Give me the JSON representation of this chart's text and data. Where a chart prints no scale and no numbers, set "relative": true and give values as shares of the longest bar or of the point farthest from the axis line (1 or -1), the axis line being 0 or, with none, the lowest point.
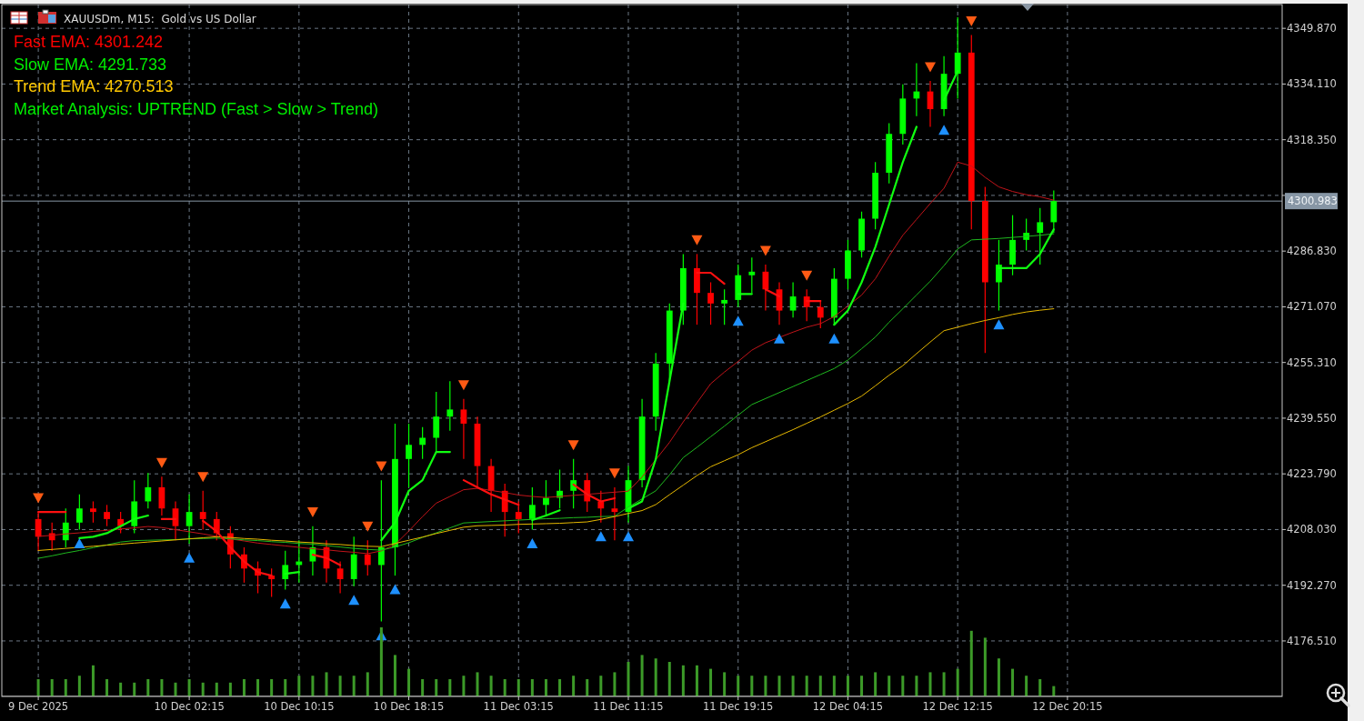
{
  "chart_data": [
    {
      "type": "candlestick",
      "title": "XAUUSDm, M15:  Gold vs US Dollar",
      "annotations": [
        "Fast EMA: 4301.242",
        "Slow EMA: 4291.733",
        "Trend EMA: 4270.513",
        "Market Analysis: UPTREND (Fast > Slow > Trend)"
      ],
      "categories": [
        "9 Dec 2025",
        null,
        null,
        null,
        null,
        null,
        null,
        null,
        null,
        null,
        null,
        "10 Dec 02:15",
        null,
        null,
        null,
        null,
        null,
        null,
        null,
        "10 Dec 10:15",
        null,
        null,
        null,
        null,
        null,
        null,
        null,
        "10 Dec 18:15",
        null,
        null,
        null,
        null,
        null,
        null,
        null,
        "11 Dec 03:15",
        null,
        null,
        null,
        null,
        null,
        null,
        null,
        "11 Dec 11:15",
        null,
        null,
        null,
        null,
        null,
        null,
        null,
        "11 Dec 19:15",
        null,
        null,
        null,
        null,
        null,
        null,
        null,
        "12 Dec 04:15",
        null,
        null,
        null,
        null,
        null,
        null,
        null,
        "12 Dec 12:15",
        null,
        null,
        null,
        null,
        null,
        null,
        null,
        "12 Dec 20:15"
      ],
      "ohlc": [
        [
          4211,
          4213,
          4202,
          4206
        ],
        [
          4207,
          4210,
          4202,
          4205
        ],
        [
          4205,
          4214,
          4203,
          4210
        ],
        [
          4210,
          4218,
          4208,
          4214
        ],
        [
          4214,
          4216,
          4210,
          4213
        ],
        [
          4213,
          4215,
          4209,
          4211
        ],
        [
          4211,
          4213,
          4207,
          4209
        ],
        [
          4209,
          4222,
          4207,
          4216
        ],
        [
          4216,
          4224,
          4214,
          4220
        ],
        [
          4220,
          4223,
          4212,
          4214
        ],
        [
          4214,
          4216,
          4205,
          4209
        ],
        [
          4209,
          4218,
          4204,
          4213
        ],
        [
          4213,
          4219,
          4208,
          4211
        ],
        [
          4211,
          4213,
          4205,
          4207
        ],
        [
          4207,
          4209,
          4197,
          4201
        ],
        [
          4201,
          4203,
          4193,
          4197
        ],
        [
          4197,
          4199,
          4190,
          4195
        ],
        [
          4195,
          4197,
          4189,
          4194
        ],
        [
          4194,
          4202,
          4191,
          4198
        ],
        [
          4198,
          4205,
          4193,
          4199
        ],
        [
          4199,
          4209,
          4195,
          4203
        ],
        [
          4203,
          4205,
          4193,
          4197
        ],
        [
          4197,
          4199,
          4190,
          4194
        ],
        [
          4194,
          4206,
          4192,
          4201
        ],
        [
          4201,
          4205,
          4195,
          4198
        ],
        [
          4198,
          4222,
          4182,
          4203
        ],
        [
          4203,
          4238,
          4195,
          4228
        ],
        [
          4228,
          4238,
          4220,
          4232
        ],
        [
          4232,
          4237,
          4228,
          4234
        ],
        [
          4234,
          4247,
          4230,
          4240
        ],
        [
          4240,
          4250,
          4236,
          4242
        ],
        [
          4242,
          4245,
          4228,
          4238
        ],
        [
          4238,
          4240,
          4220,
          4226
        ],
        [
          4226,
          4228,
          4213,
          4219
        ],
        [
          4219,
          4221,
          4206,
          4213
        ],
        [
          4213,
          4216,
          4207,
          4211
        ],
        [
          4211,
          4220,
          4208,
          4215
        ],
        [
          4215,
          4222,
          4212,
          4217
        ],
        [
          4217,
          4225,
          4214,
          4219
        ],
        [
          4219,
          4228,
          4214,
          4222
        ],
        [
          4222,
          4224,
          4213,
          4216
        ],
        [
          4216,
          4219,
          4210,
          4214
        ],
        [
          4214,
          4220,
          4205,
          4213
        ],
        [
          4213,
          4226,
          4210,
          4222
        ],
        [
          4222,
          4245,
          4220,
          4240
        ],
        [
          4240,
          4258,
          4236,
          4255
        ],
        [
          4255,
          4272,
          4250,
          4270
        ],
        [
          4270,
          4286,
          4266,
          4282
        ],
        [
          4282,
          4286,
          4266,
          4275
        ],
        [
          4275,
          4278,
          4266,
          4272
        ],
        [
          4272,
          4276,
          4266,
          4273
        ],
        [
          4273,
          4283,
          4271,
          4280
        ],
        [
          4280,
          4285,
          4275,
          4281
        ],
        [
          4281,
          4283,
          4270,
          4276
        ],
        [
          4276,
          4278,
          4266,
          4270
        ],
        [
          4270,
          4278,
          4268,
          4274
        ],
        [
          4274,
          4276,
          4267,
          4271
        ],
        [
          4271,
          4273,
          4265,
          4268
        ],
        [
          4268,
          4282,
          4266,
          4279
        ],
        [
          4279,
          4290,
          4276,
          4287
        ],
        [
          4287,
          4298,
          4285,
          4296
        ],
        [
          4296,
          4312,
          4293,
          4309
        ],
        [
          4309,
          4323,
          4306,
          4320
        ],
        [
          4320,
          4334,
          4317,
          4330
        ],
        [
          4330,
          4340,
          4325,
          4332
        ],
        [
          4332,
          4335,
          4322,
          4327
        ],
        [
          4327,
          4342,
          4325,
          4337
        ],
        [
          4337,
          4353,
          4330,
          4343
        ],
        [
          4343,
          4348,
          4293,
          4301
        ],
        [
          4301,
          4305,
          4258,
          4278
        ],
        [
          4278,
          4290,
          4270,
          4283
        ],
        [
          4283,
          4297,
          4280,
          4290
        ],
        [
          4290,
          4296,
          4287,
          4292
        ],
        [
          4292,
          4299,
          4283,
          4295
        ],
        [
          4295,
          4304,
          4292,
          4300.983
        ],
        null
      ],
      "colors": [
        "#ff0000",
        "#ff0000",
        "#00ff00",
        "#00ff00",
        "#ff0000",
        "#ff0000",
        "#ff0000",
        "#00ff00",
        "#00ff00",
        "#ff0000",
        "#ff0000",
        "#00ff00",
        "#ff0000",
        "#ff0000",
        "#ff0000",
        "#ff0000",
        "#ff0000",
        "#ff0000",
        "#00ff00",
        "#00ff00",
        "#00ff00",
        "#ff0000",
        "#ff0000",
        "#00ff00",
        "#ff0000",
        "#00ff00",
        "#00ff00",
        "#00ff00",
        "#00ff00",
        "#00ff00",
        "#00ff00",
        "#ff0000",
        "#ff0000",
        "#ff0000",
        "#ff0000",
        "#ff0000",
        "#00ff00",
        "#00ff00",
        "#00ff00",
        "#00ff00",
        "#ff0000",
        "#ff0000",
        "#ff0000",
        "#00ff00",
        "#00ff00",
        "#00ff00",
        "#00ff00",
        "#00ff00",
        "#ff0000",
        "#ff0000",
        "#00ff00",
        "#00ff00",
        "#00ff00",
        "#ff0000",
        "#ff0000",
        "#00ff00",
        "#ff0000",
        "#ff0000",
        "#00ff00",
        "#00ff00",
        "#00ff00",
        "#00ff00",
        "#00ff00",
        "#00ff00",
        "#00ff00",
        "#ff0000",
        "#00ff00",
        "#00ff00",
        "#ff0000",
        "#ff0000",
        "#00ff00",
        "#00ff00",
        "#00ff00",
        "#00ff00",
        "#00ff00",
        null
      ],
      "series": [
        {
          "type": "line",
          "color": "#c0141a",
          "values": [
            4206.1,
            4206.4,
            4206.8,
            4207.1,
            4207.5,
            4207.8,
            4208.2,
            4208.5,
            4208.9,
            4208.6,
            4208.0,
            4207.4,
            4206.8,
            4206.1,
            4205.4,
            4204.8,
            4204.2,
            4203.8,
            4203.4,
            4203.0,
            4202.6,
            4202.3,
            4201.9,
            4201.6,
            4201.2,
            4202.0,
            4203.8,
            4207.6,
            4211.7,
            4215.5,
            4217.4,
            4219.3,
            4219.7,
            4219.1,
            4218.5,
            4217.8,
            4217.4,
            4217.1,
            4217.4,
            4217.7,
            4218.0,
            4218.3,
            4218.6,
            4218.9,
            4222.9,
            4227.8,
            4232.7,
            4238.5,
            4243.9,
            4249.3,
            4252.6,
            4255.6,
            4258.8,
            4260.9,
            4262.4,
            4263.9,
            4265.3,
            4266.3,
            4268.3,
            4271.3,
            4274.4,
            4279.0,
            4285.4,
            4291.3,
            4295.8,
            4300.3,
            4304.6,
            4312.0,
            4310.9,
            4307.7,
            4305.0,
            4303.7,
            4302.8,
            4302.2,
            4301.242,
            null
          ]
        },
        {
          "type": "line",
          "color": "#1fb81f",
          "values": [
            4199.9,
            4200.6,
            4201.4,
            4202.1,
            4202.9,
            4203.7,
            4204.5,
            4204.9,
            4205.0,
            4205.1,
            4205.2,
            4205.4,
            4205.5,
            4205.6,
            4205.4,
            4205.1,
            4204.9,
            4204.6,
            4204.4,
            4204.1,
            4203.9,
            4203.5,
            4203.1,
            4202.7,
            4202.4,
            4202.2,
            4203.1,
            4204.3,
            4205.8,
            4207.1,
            4208.5,
            4209.9,
            4210.1,
            4210.3,
            4210.5,
            4210.7,
            4210.9,
            4211.1,
            4211.2,
            4211.4,
            4211.5,
            4211.7,
            4211.8,
            4214.4,
            4216.7,
            4219.0,
            4223.5,
            4228.4,
            4231.3,
            4234.3,
            4237.3,
            4240.4,
            4243.4,
            4245.1,
            4246.8,
            4248.5,
            4250.2,
            4251.9,
            4253.6,
            4256.0,
            4259.2,
            4262.5,
            4266.7,
            4270.5,
            4274.4,
            4278.3,
            4282.7,
            4287.4,
            4290.0,
            4290.2,
            4290.4,
            4290.7,
            4291.0,
            4291.3,
            4291.733,
            null
          ]
        },
        {
          "type": "line",
          "color": "#e6b800",
          "values": [
            4202.1,
            4202.4,
            4202.7,
            4203.0,
            4203.3,
            4203.6,
            4203.9,
            4204.2,
            4204.5,
            4204.8,
            4205.1,
            4205.4,
            4205.7,
            4206.0,
            4205.8,
            4205.5,
            4205.3,
            4205.0,
            4204.8,
            4204.5,
            4204.3,
            4204.0,
            4203.8,
            4203.5,
            4203.3,
            4203.2,
            4204.1,
            4205.0,
            4205.9,
            4206.9,
            4207.8,
            4208.7,
            4209.1,
            4209.2,
            4209.3,
            4209.5,
            4209.6,
            4209.7,
            4209.8,
            4210.0,
            4210.2,
            4210.9,
            4211.7,
            4212.6,
            4213.4,
            4215.1,
            4217.9,
            4220.6,
            4223.3,
            4225.8,
            4227.5,
            4229.2,
            4231.2,
            4232.9,
            4234.6,
            4236.3,
            4238.1,
            4239.9,
            4241.8,
            4243.7,
            4245.8,
            4248.7,
            4251.7,
            4254.4,
            4257.8,
            4261.1,
            4264.3,
            4265.3,
            4266.3,
            4267.2,
            4268.0,
            4268.9,
            4269.6,
            4270.1,
            4270.513,
            null
          ]
        },
        {
          "type": "line",
          "color": "#ff1010",
          "values": [
            4213,
            4213,
            4213,
            null,
            null,
            null,
            null,
            null,
            null,
            4211,
            4211,
            null,
            4210.5,
            4207.5,
            4203,
            4199,
            4196,
            4195,
            null,
            null,
            4200.9,
            4200,
            4198,
            null,
            null,
            null,
            null,
            null,
            null,
            null,
            null,
            4222,
            4220,
            4218,
            4216.5,
            4215,
            null,
            null,
            null,
            4220.8,
            4218,
            4216,
            4216.9,
            null,
            null,
            null,
            null,
            null,
            4280.7,
            4280.7,
            4277.6,
            null,
            null,
            4276,
            4274,
            null,
            4272.7,
            4272.7,
            null,
            null,
            null,
            null,
            null,
            null,
            null,
            null,
            null,
            null,
            null,
            null,
            null,
            null,
            null,
            null,
            null,
            null
          ]
        },
        {
          "type": "line",
          "color": "#10ff10",
          "values": [
            null,
            null,
            null,
            4205.6,
            4206,
            4207,
            4209,
            4211,
            4212,
            null,
            null,
            null,
            null,
            null,
            null,
            null,
            null,
            null,
            4195.5,
            4196,
            null,
            null,
            null,
            null,
            null,
            4205,
            4210,
            4219,
            4222,
            4230,
            4230,
            null,
            null,
            null,
            null,
            null,
            4210.7,
            4212,
            4213.5,
            null,
            null,
            null,
            null,
            4214,
            4216,
            4228,
            4250,
            4272,
            null,
            null,
            null,
            4274.7,
            4274.7,
            null,
            null,
            null,
            null,
            null,
            4266,
            4270,
            4278,
            4288,
            4300,
            4312,
            4322,
            null,
            4329.5,
            4337.8,
            null,
            null,
            4282,
            4282,
            4282,
            4286,
            4293,
            null
          ]
        },
        {
          "type": "scatter",
          "marker": "triangle",
          "color": "#1e90ff",
          "values": [
            null,
            null,
            null,
            4204,
            null,
            null,
            null,
            null,
            null,
            null,
            null,
            4200,
            null,
            null,
            null,
            null,
            null,
            null,
            4187,
            null,
            null,
            null,
            null,
            4188,
            null,
            4178,
            4191,
            null,
            null,
            null,
            null,
            null,
            null,
            null,
            null,
            null,
            4204,
            null,
            null,
            null,
            null,
            4206,
            null,
            4206,
            null,
            null,
            null,
            null,
            null,
            null,
            null,
            4267,
            null,
            null,
            4262,
            null,
            null,
            null,
            4262,
            null,
            null,
            null,
            null,
            null,
            null,
            null,
            4321,
            null,
            null,
            null,
            4266,
            null,
            null,
            null,
            null,
            null
          ]
        },
        {
          "type": "scatter",
          "marker": "triangle",
          "color": "#ff5a14",
          "values": [
            4217,
            null,
            null,
            null,
            null,
            null,
            null,
            null,
            null,
            4227,
            null,
            null,
            4223,
            null,
            null,
            null,
            null,
            null,
            null,
            null,
            4213,
            null,
            null,
            null,
            4209,
            4226,
            null,
            null,
            null,
            null,
            null,
            4249,
            null,
            null,
            null,
            null,
            null,
            null,
            null,
            4232,
            null,
            null,
            4224,
            null,
            null,
            null,
            null,
            null,
            4290,
            null,
            null,
            null,
            null,
            4287,
            null,
            null,
            4280,
            null,
            null,
            null,
            null,
            null,
            null,
            null,
            null,
            4339,
            null,
            null,
            4352,
            null,
            null,
            null,
            null,
            null,
            null,
            null
          ]
        }
      ],
      "ylim": [
        4160.8,
        4356.6
      ],
      "yticks": [
        {
          "value": 4176.51,
          "label": "4176.510"
        },
        {
          "value": 4192.27,
          "label": "4192.270"
        },
        {
          "value": 4208.03,
          "label": "4208.030"
        },
        {
          "value": 4223.79,
          "label": "4223.790"
        },
        {
          "value": 4239.55,
          "label": "4239.550"
        },
        {
          "value": 4255.31,
          "label": "4255.310"
        },
        {
          "value": 4271.07,
          "label": "4271.070"
        },
        {
          "value": 4286.83,
          "label": "4286.830"
        },
        {
          "value": 4302.59,
          "label": null
        },
        {
          "value": 4318.35,
          "label": "4318.350"
        },
        {
          "value": 4334.11,
          "label": "4334.110"
        },
        {
          "value": 4349.87,
          "label": "4349.870"
        }
      ],
      "grid": true,
      "ref_lines": [
        {
          "axis": "y",
          "value": 4300.983,
          "label": "4300.983",
          "color": "#8796a5"
        }
      ]
    },
    {
      "type": "bar",
      "relative": true,
      "color": "#3c9a28",
      "categories": [
        null,
        null,
        null,
        null,
        null,
        null,
        null,
        null,
        null,
        null,
        null,
        null,
        null,
        null,
        null,
        null,
        null,
        null,
        null,
        null,
        null,
        null,
        null,
        null,
        null,
        null,
        null,
        null,
        null,
        null,
        null,
        null,
        null,
        null,
        null,
        null,
        null,
        null,
        null,
        null,
        null,
        null,
        null,
        null,
        null,
        null,
        null,
        null,
        null,
        null,
        null,
        null,
        null,
        null,
        null,
        null,
        null,
        null,
        null,
        null,
        null,
        null,
        null,
        null,
        null,
        null,
        null,
        null,
        null,
        null,
        null,
        null,
        null,
        null,
        null,
        null
      ],
      "values": [
        0.25,
        0.25,
        0.25,
        0.3,
        0.45,
        0.25,
        0.2,
        0.2,
        0.25,
        0.25,
        0.2,
        0.25,
        0.2,
        0.2,
        0.2,
        0.25,
        0.25,
        0.25,
        0.25,
        0.3,
        0.3,
        0.35,
        0.3,
        0.3,
        0.35,
        1,
        0.6,
        0.4,
        0.25,
        0.25,
        0.25,
        0.3,
        0.35,
        0.3,
        0.25,
        0.25,
        0.25,
        0.25,
        0.25,
        0.3,
        0.25,
        0.3,
        0.35,
        0.5,
        0.6,
        0.55,
        0.5,
        0.45,
        0.45,
        0.4,
        0.35,
        0.3,
        0.3,
        0.3,
        0.3,
        0.3,
        0.3,
        0.3,
        0.3,
        0.3,
        0.3,
        0.35,
        0.3,
        0.3,
        0.3,
        0.35,
        0.35,
        0.4,
        0.95,
        0.85,
        0.55,
        0.4,
        0.3,
        0.25,
        0.15,
        null
      ]
    }
  ]
}
